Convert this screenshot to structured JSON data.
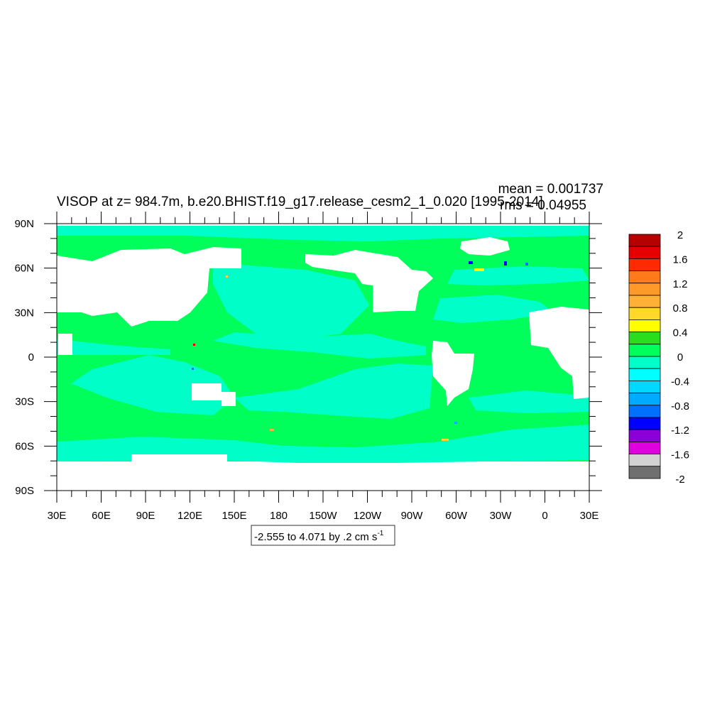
{
  "title": "VISOP at z= 984.7m, b.e20.BHIST.f19_g17.release_cesm2_1_0.020 [1995-2014]",
  "stats": {
    "mean": "mean = 0.001737",
    "rms": "rms = 0.04955"
  },
  "range_label": {
    "text": "-2.555 to 4.071 by .2 cm s",
    "sup": "-1"
  },
  "lat_labels": [
    "90N",
    "60N",
    "30N",
    "0",
    "30S",
    "60S",
    "90S"
  ],
  "lon_labels": [
    "30E",
    "60E",
    "90E",
    "120E",
    "150E",
    "180",
    "150W",
    "120W",
    "90W",
    "60W",
    "30W",
    "0",
    "30E"
  ],
  "colorbar": {
    "labels": [
      "2",
      "1.6",
      "1.2",
      "0.8",
      "0.4",
      "0",
      "-0.4",
      "-0.8",
      "-1.2",
      "-1.6",
      "-2"
    ],
    "colors_top_to_bottom": [
      "#b70000",
      "#e60000",
      "#ff2a00",
      "#ff7a1a",
      "#ff9a2a",
      "#ffb036",
      "#ffd82a",
      "#ffff00",
      "#2bdd1d",
      "#00ff5a",
      "#00ffc8",
      "#00ffff",
      "#00d8ff",
      "#00aaff",
      "#0070ff",
      "#0000ff",
      "#8c00d8",
      "#e000e0",
      "#d2d2d2",
      "#707070"
    ]
  },
  "map_colors": {
    "ocean_near_zero_positive": "#00ff5a",
    "ocean_near_zero_negative": "#00ffc8",
    "land": "#ffffff"
  }
}
